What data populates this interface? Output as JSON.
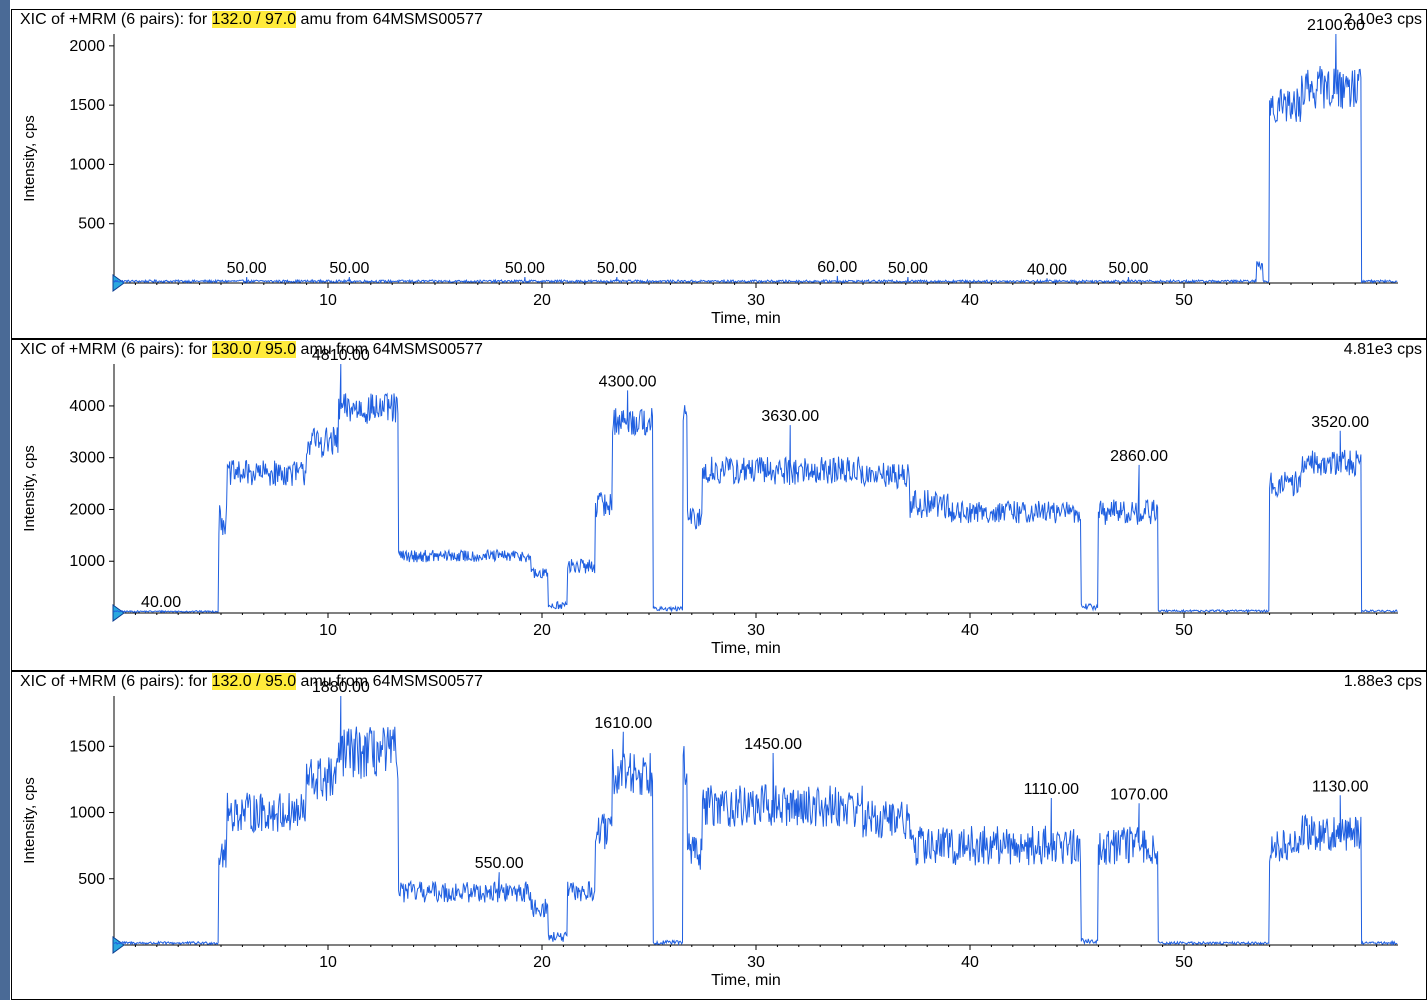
{
  "chart_data": [
    {
      "type": "line",
      "title_prefix": "XIC of +MRM (6 pairs): for ",
      "title_highlight": "132.0 / 97.0",
      "title_suffix": " amu from 64MSMS00577",
      "max_label": "2.10e3 cps",
      "xlabel": "Time, min",
      "ylabel": "Intensity, cps",
      "xlim": [
        0,
        60
      ],
      "ylim": [
        0,
        2100
      ],
      "xticks": [
        10,
        20,
        30,
        40,
        50
      ],
      "yticks": [
        500,
        1000,
        1500,
        2000
      ],
      "line_color": "#1f5fe0",
      "segments": [
        {
          "from": 0.0,
          "to": 53.4,
          "level": 15,
          "noise": 10
        },
        {
          "from": 53.4,
          "to": 53.7,
          "level": 150,
          "noise": 40
        },
        {
          "from": 53.7,
          "to": 54.0,
          "level": 15,
          "noise": 10
        },
        {
          "from": 54.0,
          "to": 55.5,
          "level": 1500,
          "noise": 150
        },
        {
          "from": 55.5,
          "to": 58.3,
          "level": 1650,
          "noise": 180
        },
        {
          "from": 58.3,
          "to": 60.0,
          "level": 15,
          "noise": 10
        }
      ],
      "peaks": [
        {
          "x": 6.2,
          "y": 50,
          "label": "50.00"
        },
        {
          "x": 11.0,
          "y": 50,
          "label": "50.00"
        },
        {
          "x": 19.2,
          "y": 50,
          "label": "50.00"
        },
        {
          "x": 23.5,
          "y": 50,
          "label": "50.00"
        },
        {
          "x": 33.8,
          "y": 60,
          "label": "60.00"
        },
        {
          "x": 37.1,
          "y": 50,
          "label": "50.00"
        },
        {
          "x": 43.6,
          "y": 40,
          "label": "40.00"
        },
        {
          "x": 47.4,
          "y": 50,
          "label": "50.00"
        },
        {
          "x": 57.1,
          "y": 2100,
          "label": "2100.00"
        }
      ]
    },
    {
      "type": "line",
      "title_prefix": "XIC of +MRM (6 pairs): for ",
      "title_highlight": "130.0 / 95.0",
      "title_suffix": " amu from 64MSMS00577",
      "max_label": "4.81e3 cps",
      "xlabel": "Time, min",
      "ylabel": "Intensity, cps",
      "xlim": [
        0,
        60
      ],
      "ylim": [
        0,
        4810
      ],
      "xticks": [
        10,
        20,
        30,
        40,
        50
      ],
      "yticks": [
        1000,
        2000,
        3000,
        4000
      ],
      "line_color": "#1f5fe0",
      "segments": [
        {
          "from": 0.0,
          "to": 4.9,
          "level": 30,
          "noise": 15
        },
        {
          "from": 4.9,
          "to": 5.3,
          "level": 1800,
          "noise": 300
        },
        {
          "from": 5.3,
          "to": 9.0,
          "level": 2700,
          "noise": 250
        },
        {
          "from": 9.0,
          "to": 10.5,
          "level": 3300,
          "noise": 300
        },
        {
          "from": 10.5,
          "to": 13.3,
          "level": 3950,
          "noise": 300
        },
        {
          "from": 13.3,
          "to": 19.5,
          "level": 1100,
          "noise": 120
        },
        {
          "from": 19.5,
          "to": 20.3,
          "level": 750,
          "noise": 120
        },
        {
          "from": 20.3,
          "to": 21.2,
          "level": 150,
          "noise": 80
        },
        {
          "from": 21.2,
          "to": 22.5,
          "level": 900,
          "noise": 150
        },
        {
          "from": 22.5,
          "to": 23.3,
          "level": 2100,
          "noise": 250
        },
        {
          "from": 23.3,
          "to": 25.2,
          "level": 3700,
          "noise": 280
        },
        {
          "from": 25.2,
          "to": 26.6,
          "level": 80,
          "noise": 40
        },
        {
          "from": 26.6,
          "to": 26.8,
          "level": 3900,
          "noise": 300
        },
        {
          "from": 26.8,
          "to": 27.5,
          "level": 1800,
          "noise": 250
        },
        {
          "from": 27.5,
          "to": 35.0,
          "level": 2750,
          "noise": 280
        },
        {
          "from": 35.0,
          "to": 37.2,
          "level": 2650,
          "noise": 250
        },
        {
          "from": 37.2,
          "to": 39.0,
          "level": 2100,
          "noise": 280
        },
        {
          "from": 39.0,
          "to": 45.2,
          "level": 1950,
          "noise": 220
        },
        {
          "from": 45.2,
          "to": 46.0,
          "level": 120,
          "noise": 60
        },
        {
          "from": 46.0,
          "to": 48.8,
          "level": 1950,
          "noise": 250
        },
        {
          "from": 48.8,
          "to": 54.0,
          "level": 40,
          "noise": 20
        },
        {
          "from": 54.0,
          "to": 55.5,
          "level": 2500,
          "noise": 250
        },
        {
          "from": 55.5,
          "to": 58.3,
          "level": 2900,
          "noise": 250
        },
        {
          "from": 58.3,
          "to": 60.0,
          "level": 40,
          "noise": 20
        }
      ],
      "peaks": [
        {
          "x": 2.2,
          "y": 40,
          "label": "40.00"
        },
        {
          "x": 10.6,
          "y": 4810,
          "label": "4810.00"
        },
        {
          "x": 24.0,
          "y": 4300,
          "label": "4300.00"
        },
        {
          "x": 31.6,
          "y": 3630,
          "label": "3630.00"
        },
        {
          "x": 47.9,
          "y": 2860,
          "label": "2860.00"
        },
        {
          "x": 57.3,
          "y": 3520,
          "label": "3520.00"
        }
      ]
    },
    {
      "type": "line",
      "title_prefix": "XIC of +MRM (6 pairs): for ",
      "title_highlight": "132.0 / 95.0",
      "title_suffix": " amu from 64MSMS00577",
      "max_label": "1.88e3 cps",
      "xlabel": "Time, min",
      "ylabel": "Intensity, cps",
      "xlim": [
        0,
        60
      ],
      "ylim": [
        0,
        1880
      ],
      "xticks": [
        10,
        20,
        30,
        40,
        50
      ],
      "yticks": [
        500,
        1000,
        1500
      ],
      "line_color": "#1f5fe0",
      "segments": [
        {
          "from": 0.0,
          "to": 4.9,
          "level": 15,
          "noise": 10
        },
        {
          "from": 4.9,
          "to": 5.3,
          "level": 700,
          "noise": 150
        },
        {
          "from": 5.3,
          "to": 9.0,
          "level": 1000,
          "noise": 150
        },
        {
          "from": 9.0,
          "to": 10.5,
          "level": 1250,
          "noise": 180
        },
        {
          "from": 10.5,
          "to": 13.3,
          "level": 1450,
          "noise": 200
        },
        {
          "from": 13.3,
          "to": 19.5,
          "level": 400,
          "noise": 80
        },
        {
          "from": 19.5,
          "to": 20.3,
          "level": 280,
          "noise": 70
        },
        {
          "from": 20.3,
          "to": 21.2,
          "level": 60,
          "noise": 40
        },
        {
          "from": 21.2,
          "to": 22.5,
          "level": 400,
          "noise": 80
        },
        {
          "from": 22.5,
          "to": 23.3,
          "level": 850,
          "noise": 150
        },
        {
          "from": 23.3,
          "to": 25.2,
          "level": 1300,
          "noise": 180
        },
        {
          "from": 25.2,
          "to": 26.6,
          "level": 20,
          "noise": 15
        },
        {
          "from": 26.6,
          "to": 26.8,
          "level": 1400,
          "noise": 200
        },
        {
          "from": 26.8,
          "to": 27.5,
          "level": 700,
          "noise": 150
        },
        {
          "from": 27.5,
          "to": 35.0,
          "level": 1050,
          "noise": 160
        },
        {
          "from": 35.0,
          "to": 37.2,
          "level": 950,
          "noise": 150
        },
        {
          "from": 37.2,
          "to": 39.0,
          "level": 750,
          "noise": 150
        },
        {
          "from": 39.0,
          "to": 45.2,
          "level": 750,
          "noise": 150
        },
        {
          "from": 45.2,
          "to": 46.0,
          "level": 30,
          "noise": 20
        },
        {
          "from": 46.0,
          "to": 48.8,
          "level": 750,
          "noise": 150
        },
        {
          "from": 48.8,
          "to": 54.0,
          "level": 15,
          "noise": 10
        },
        {
          "from": 54.0,
          "to": 55.5,
          "level": 750,
          "noise": 120
        },
        {
          "from": 55.5,
          "to": 58.3,
          "level": 850,
          "noise": 140
        },
        {
          "from": 58.3,
          "to": 60.0,
          "level": 15,
          "noise": 10
        }
      ],
      "peaks": [
        {
          "x": 10.6,
          "y": 1880,
          "label": "1880.00"
        },
        {
          "x": 18.0,
          "y": 550,
          "label": "550.00"
        },
        {
          "x": 23.8,
          "y": 1610,
          "label": "1610.00"
        },
        {
          "x": 30.8,
          "y": 1450,
          "label": "1450.00"
        },
        {
          "x": 43.8,
          "y": 1110,
          "label": "1110.00"
        },
        {
          "x": 47.9,
          "y": 1070,
          "label": "1070.00"
        },
        {
          "x": 57.3,
          "y": 1130,
          "label": "1130.00"
        }
      ]
    }
  ]
}
